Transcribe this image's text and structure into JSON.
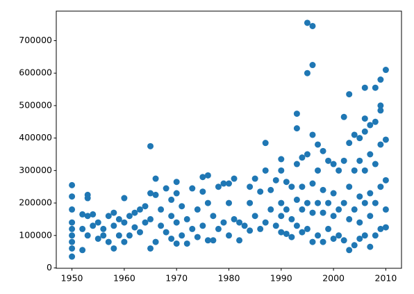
{
  "chart_data": {
    "type": "scatter",
    "color": "#1f77b4",
    "x": [
      1950,
      1950,
      1950,
      1950,
      1950,
      1950,
      1950,
      1950,
      1950,
      1952,
      1952,
      1952,
      1953,
      1953,
      1953,
      1953,
      1954,
      1954,
      1955,
      1955,
      1956,
      1956,
      1957,
      1957,
      1958,
      1958,
      1958,
      1959,
      1959,
      1960,
      1960,
      1960,
      1961,
      1961,
      1962,
      1962,
      1963,
      1963,
      1964,
      1964,
      1965,
      1965,
      1965,
      1965,
      1966,
      1966,
      1966,
      1967,
      1967,
      1968,
      1968,
      1969,
      1969,
      1969,
      1970,
      1970,
      1970,
      1970,
      1971,
      1971,
      1972,
      1972,
      1973,
      1973,
      1974,
      1974,
      1975,
      1975,
      1975,
      1976,
      1976,
      1976,
      1977,
      1977,
      1978,
      1978,
      1979,
      1979,
      1980,
      1980,
      1980,
      1981,
      1981,
      1982,
      1982,
      1983,
      1984,
      1984,
      1984,
      1985,
      1985,
      1986,
      1986,
      1987,
      1987,
      1987,
      1988,
      1988,
      1989,
      1989,
      1990,
      1990,
      1990,
      1990,
      1990,
      1991,
      1991,
      1991,
      1992,
      1992,
      1992,
      1993,
      1993,
      1993,
      1993,
      1993,
      1994,
      1994,
      1994,
      1994,
      1995,
      1995,
      1995,
      1995,
      1995,
      1996,
      1996,
      1996,
      1996,
      1996,
      1996,
      1997,
      1997,
      1997,
      1997,
      1998,
      1998,
      1998,
      1998,
      1999,
      1999,
      1999,
      2000,
      2000,
      2000,
      2000,
      2001,
      2001,
      2001,
      2002,
      2002,
      2002,
      2002,
      2003,
      2003,
      2003,
      2003,
      2003,
      2004,
      2004,
      2004,
      2004,
      2005,
      2005,
      2005,
      2005,
      2005,
      2006,
      2006,
      2006,
      2006,
      2006,
      2006,
      2007,
      2007,
      2007,
      2007,
      2007,
      2008,
      2008,
      2008,
      2008,
      2008,
      2009,
      2009,
      2009,
      2009,
      2009,
      2009,
      2010,
      2010,
      2010,
      2010,
      2010
    ],
    "values": [
      35000,
      60000,
      100000,
      140000,
      180000,
      220000,
      255000,
      80000,
      120000,
      55000,
      165000,
      120000,
      225000,
      215000,
      160000,
      100000,
      130000,
      165000,
      90000,
      140000,
      120000,
      100000,
      80000,
      160000,
      60000,
      130000,
      170000,
      100000,
      150000,
      215000,
      80000,
      140000,
      100000,
      160000,
      125000,
      170000,
      110000,
      180000,
      190000,
      140000,
      375000,
      60000,
      230000,
      150000,
      275000,
      80000,
      225000,
      130000,
      180000,
      245000,
      110000,
      210000,
      90000,
      160000,
      265000,
      75000,
      230000,
      140000,
      100000,
      190000,
      75000,
      150000,
      245000,
      120000,
      95000,
      180000,
      280000,
      130000,
      235000,
      285000,
      85000,
      200000,
      85000,
      160000,
      250000,
      120000,
      260000,
      140000,
      260000,
      100000,
      200000,
      275000,
      150000,
      85000,
      140000,
      130000,
      250000,
      115000,
      200000,
      275000,
      160000,
      235000,
      120000,
      385000,
      300000,
      140000,
      240000,
      180000,
      270000,
      130000,
      335000,
      300000,
      110000,
      200000,
      160000,
      265000,
      105000,
      180000,
      250000,
      95000,
      150000,
      475000,
      430000,
      320000,
      130000,
      210000,
      340000,
      110000,
      250000,
      180000,
      755000,
      600000,
      350000,
      120000,
      200000,
      745000,
      625000,
      410000,
      80000,
      260000,
      170000,
      380000,
      100000,
      300000,
      200000,
      360000,
      80000,
      240000,
      170000,
      330000,
      120000,
      200000,
      320000,
      90000,
      230000,
      160000,
      300000,
      100000,
      180000,
      465000,
      85000,
      330000,
      200000,
      535000,
      55000,
      385000,
      250000,
      150000,
      410000,
      70000,
      300000,
      180000,
      400000,
      90000,
      330000,
      220000,
      140000,
      555000,
      460000,
      420000,
      100000,
      300000,
      200000,
      440000,
      65000,
      350000,
      230000,
      160000,
      555000,
      450000,
      100000,
      320000,
      200000,
      580000,
      500000,
      485000,
      120000,
      380000,
      250000,
      610000,
      395000,
      125000,
      270000,
      180000
    ],
    "xlim": [
      1947,
      2013
    ],
    "ylim": [
      -1100,
      791000
    ],
    "xticks": [
      1950,
      1960,
      1970,
      1980,
      1990,
      2000,
      2010
    ],
    "yticks": [
      0,
      100000,
      200000,
      300000,
      400000,
      500000,
      600000,
      700000
    ]
  }
}
